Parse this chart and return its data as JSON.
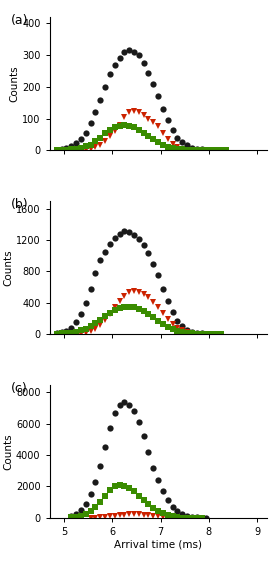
{
  "panels": [
    "(a)",
    "(b)",
    "(c)"
  ],
  "xlabel": "Arrival time (ms)",
  "ylabel": "Counts",
  "xlim": [
    4.7,
    9.2
  ],
  "xticks": [
    5,
    6,
    7,
    8,
    9
  ],
  "panel_a": {
    "ylim": [
      0,
      420
    ],
    "yticks": [
      0,
      100,
      200,
      300,
      400
    ],
    "black": {
      "x": [
        4.85,
        4.95,
        5.05,
        5.15,
        5.25,
        5.35,
        5.45,
        5.55,
        5.65,
        5.75,
        5.85,
        5.95,
        6.05,
        6.15,
        6.25,
        6.35,
        6.45,
        6.55,
        6.65,
        6.75,
        6.85,
        6.95,
        7.05,
        7.15,
        7.25,
        7.35,
        7.45,
        7.55,
        7.65,
        7.75,
        7.85,
        7.95,
        8.05,
        8.15
      ],
      "y": [
        2,
        4,
        8,
        12,
        22,
        35,
        55,
        85,
        120,
        160,
        200,
        240,
        270,
        290,
        310,
        315,
        310,
        300,
        275,
        245,
        210,
        170,
        130,
        95,
        65,
        40,
        25,
        15,
        8,
        5,
        3,
        2,
        1,
        0
      ]
    },
    "red": {
      "x": [
        5.45,
        5.55,
        5.65,
        5.75,
        5.85,
        5.95,
        6.05,
        6.15,
        6.25,
        6.35,
        6.45,
        6.55,
        6.65,
        6.75,
        6.85,
        6.95,
        7.05,
        7.15,
        7.25,
        7.35,
        7.45,
        7.55,
        7.65,
        7.75
      ],
      "y": [
        2,
        5,
        10,
        18,
        30,
        45,
        60,
        80,
        105,
        120,
        125,
        120,
        110,
        100,
        90,
        75,
        55,
        35,
        20,
        10,
        5,
        2,
        1,
        0
      ]
    },
    "green": {
      "x": [
        4.85,
        4.95,
        5.05,
        5.15,
        5.25,
        5.35,
        5.45,
        5.55,
        5.65,
        5.75,
        5.85,
        5.95,
        6.05,
        6.15,
        6.25,
        6.35,
        6.45,
        6.55,
        6.65,
        6.75,
        6.85,
        6.95,
        7.05,
        7.15,
        7.25,
        7.35,
        7.45,
        7.55,
        7.65,
        7.75,
        7.85,
        7.95,
        8.05,
        8.15,
        8.25,
        8.35
      ],
      "y": [
        0,
        1,
        2,
        3,
        5,
        8,
        12,
        18,
        28,
        40,
        55,
        65,
        72,
        78,
        80,
        78,
        72,
        65,
        55,
        45,
        35,
        25,
        16,
        10,
        6,
        4,
        3,
        2,
        1,
        1,
        0,
        0,
        0,
        0,
        0,
        0
      ]
    }
  },
  "panel_b": {
    "ylim": [
      0,
      1700
    ],
    "yticks": [
      0,
      400,
      800,
      1200,
      1600
    ],
    "black": {
      "x": [
        4.85,
        4.95,
        5.05,
        5.15,
        5.25,
        5.35,
        5.45,
        5.55,
        5.65,
        5.75,
        5.85,
        5.95,
        6.05,
        6.15,
        6.25,
        6.35,
        6.45,
        6.55,
        6.65,
        6.75,
        6.85,
        6.95,
        7.05,
        7.15,
        7.25,
        7.35,
        7.45,
        7.55,
        7.65,
        7.75,
        7.85,
        7.95,
        8.05
      ],
      "y": [
        10,
        20,
        40,
        80,
        150,
        260,
        400,
        580,
        780,
        950,
        1050,
        1150,
        1220,
        1280,
        1310,
        1300,
        1270,
        1210,
        1130,
        1030,
        900,
        750,
        580,
        420,
        280,
        170,
        100,
        55,
        30,
        15,
        8,
        4,
        2
      ]
    },
    "red": {
      "x": [
        5.35,
        5.45,
        5.55,
        5.65,
        5.75,
        5.85,
        5.95,
        6.05,
        6.15,
        6.25,
        6.35,
        6.45,
        6.55,
        6.65,
        6.75,
        6.85,
        6.95,
        7.05,
        7.15,
        7.25,
        7.35,
        7.45,
        7.55,
        7.65,
        7.75,
        7.85
      ],
      "y": [
        5,
        15,
        35,
        70,
        120,
        185,
        260,
        340,
        420,
        490,
        530,
        545,
        540,
        510,
        470,
        415,
        345,
        270,
        195,
        130,
        80,
        45,
        22,
        10,
        4,
        1
      ]
    },
    "green": {
      "x": [
        4.85,
        4.95,
        5.05,
        5.15,
        5.25,
        5.35,
        5.45,
        5.55,
        5.65,
        5.75,
        5.85,
        5.95,
        6.05,
        6.15,
        6.25,
        6.35,
        6.45,
        6.55,
        6.65,
        6.75,
        6.85,
        6.95,
        7.05,
        7.15,
        7.25,
        7.35,
        7.45,
        7.55,
        7.65,
        7.75,
        7.85,
        7.95,
        8.05,
        8.15,
        8.25
      ],
      "y": [
        5,
        8,
        12,
        18,
        28,
        45,
        70,
        100,
        140,
        185,
        230,
        270,
        305,
        330,
        345,
        350,
        340,
        320,
        290,
        255,
        215,
        170,
        130,
        95,
        65,
        42,
        25,
        14,
        8,
        4,
        2,
        1,
        0,
        0,
        0
      ]
    }
  },
  "panel_c": {
    "ylim": [
      0,
      8500
    ],
    "yticks": [
      0,
      2000,
      4000,
      6000,
      8000
    ],
    "black": {
      "x": [
        5.15,
        5.25,
        5.35,
        5.45,
        5.55,
        5.65,
        5.75,
        5.85,
        5.95,
        6.05,
        6.15,
        6.25,
        6.35,
        6.45,
        6.55,
        6.65,
        6.75,
        6.85,
        6.95,
        7.05,
        7.15,
        7.25,
        7.35,
        7.45,
        7.55,
        7.65,
        7.75,
        7.85,
        7.95
      ],
      "y": [
        100,
        250,
        500,
        900,
        1500,
        2300,
        3300,
        4500,
        5700,
        6700,
        7200,
        7400,
        7200,
        6800,
        6100,
        5200,
        4200,
        3200,
        2400,
        1700,
        1150,
        720,
        420,
        220,
        110,
        50,
        20,
        8,
        3
      ]
    },
    "red": {
      "x": [
        5.55,
        5.65,
        5.75,
        5.85,
        5.95,
        6.05,
        6.15,
        6.25,
        6.35,
        6.45,
        6.55,
        6.65,
        6.75,
        6.85,
        6.95,
        7.05,
        7.15,
        7.25,
        7.35,
        7.45,
        7.55,
        7.65,
        7.75
      ],
      "y": [
        5,
        15,
        30,
        55,
        90,
        130,
        170,
        200,
        220,
        225,
        215,
        195,
        165,
        130,
        95,
        65,
        40,
        22,
        10,
        4,
        2,
        1,
        0
      ]
    },
    "green": {
      "x": [
        5.15,
        5.25,
        5.35,
        5.45,
        5.55,
        5.65,
        5.75,
        5.85,
        5.95,
        6.05,
        6.15,
        6.25,
        6.35,
        6.45,
        6.55,
        6.65,
        6.75,
        6.85,
        6.95,
        7.05,
        7.15,
        7.25,
        7.35,
        7.45,
        7.55,
        7.65,
        7.75,
        7.85
      ],
      "y": [
        20,
        60,
        130,
        250,
        430,
        680,
        1000,
        1380,
        1750,
        2000,
        2080,
        2040,
        1900,
        1680,
        1420,
        1140,
        870,
        630,
        430,
        275,
        160,
        85,
        40,
        17,
        6,
        2,
        1,
        0
      ]
    }
  },
  "colors": {
    "black": "#1a1a1a",
    "red": "#cc2200",
    "green": "#3a8c00"
  },
  "marker_size": 4.5
}
